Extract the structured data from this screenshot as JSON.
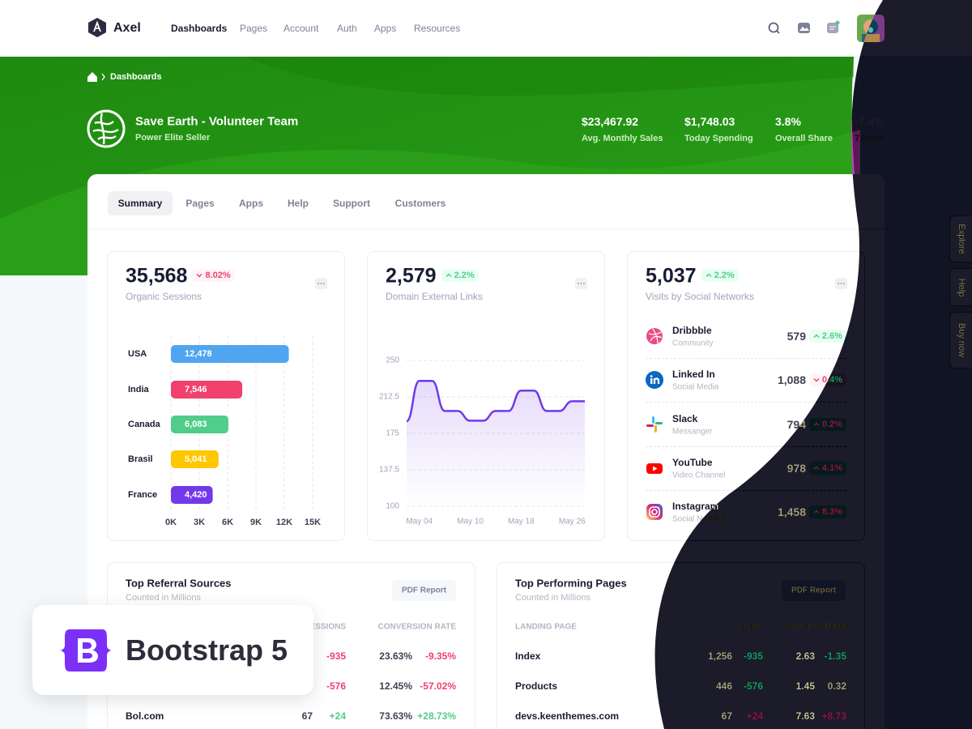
{
  "nav": {
    "brand": "Axel",
    "menu": [
      "Dashboards",
      "Pages",
      "Account",
      "Auth",
      "Apps",
      "Resources"
    ]
  },
  "breadcrumb": "Dashboards",
  "profile": {
    "name": "Save Earth - Volunteer Team",
    "subtitle": "Power Elite Seller",
    "stats": [
      {
        "value": "$23,467.92",
        "label": "Avg. Monthly Sales"
      },
      {
        "value": "$1,748.03",
        "label": "Today Spending"
      },
      {
        "value": "3.8%",
        "label": "Overall Share"
      },
      {
        "value": "-7.4%",
        "label": "7 Days"
      }
    ]
  },
  "tabs": [
    "Summary",
    "Pages",
    "Apps",
    "Help",
    "Support",
    "Customers"
  ],
  "side_buttons": [
    "Explore",
    "Help",
    "Buy now"
  ],
  "cards": [
    {
      "value": "35,568",
      "change": "8.02%",
      "trend": "down",
      "label": "Organic Sessions"
    },
    {
      "value": "2,579",
      "change": "2.2%",
      "trend": "up",
      "label": "Domain External Links"
    },
    {
      "value": "5,037",
      "change": "2.2%",
      "trend": "up",
      "label": "Visits by Social Networks"
    }
  ],
  "social": [
    {
      "name": "Dribbble",
      "sub": "Community",
      "value": "579",
      "change": "2.6%",
      "trend": "up"
    },
    {
      "name": "Linked In",
      "sub": "Social Media",
      "value": "1,088",
      "change": "0.4%",
      "trend": "down"
    },
    {
      "name": "Slack",
      "sub": "Messanger",
      "value": "794",
      "change": "0.2%",
      "trend": "up"
    },
    {
      "name": "YouTube",
      "sub": "Video Channel",
      "value": "978",
      "change": "4.1%",
      "trend": "up"
    },
    {
      "name": "Instagram",
      "sub": "Social Network",
      "value": "1,458",
      "change": "8.3%",
      "trend": "up"
    }
  ],
  "chart_data": [
    {
      "type": "bar",
      "horizontal": true,
      "categories": [
        "USA",
        "India",
        "Canada",
        "Brasil",
        "France"
      ],
      "values": [
        12478,
        7546,
        6083,
        5041,
        4420
      ],
      "value_labels": [
        "12,478",
        "7,546",
        "6,083",
        "5,041",
        "4,420"
      ],
      "colors": [
        "#50a5f1",
        "#f1416c",
        "#50cd89",
        "#ffc700",
        "#7239ea"
      ],
      "xlim": [
        0,
        15000
      ],
      "xticks": [
        {
          "value": 0,
          "label": "0K"
        },
        {
          "value": 3000,
          "label": "3K"
        },
        {
          "value": 6000,
          "label": "6K"
        },
        {
          "value": 9000,
          "label": "9K"
        },
        {
          "value": 12000,
          "label": "12K"
        },
        {
          "value": 15000,
          "label": "15K"
        }
      ],
      "grid": true
    },
    {
      "type": "line",
      "categories": [
        null,
        "May 04",
        null,
        null,
        null,
        "May 10",
        null,
        null,
        null,
        "May 18",
        null,
        null,
        null,
        "May 26",
        null
      ],
      "values": [
        187.5,
        229,
        229,
        198,
        198,
        188,
        188,
        198,
        198,
        219,
        219,
        198,
        198,
        208,
        208
      ],
      "color": "#7239ea",
      "ylim": [
        100,
        250
      ],
      "yticks": [
        100,
        137.5,
        175,
        212.5,
        250
      ],
      "grid": true
    }
  ],
  "referral": {
    "title": "Top Referral Sources",
    "subtitle": "Counted in Millions",
    "button": "PDF Report",
    "columns": {
      "sessions": "SESSIONS",
      "rate": "CONVERSION RATE"
    },
    "rows": [
      {
        "change": "-935",
        "rate": "23.63%",
        "rate_change": "-9.35%"
      },
      {
        "change": "-576",
        "rate": "12.45%",
        "rate_change": "-57.02%"
      },
      {
        "source": "Bol.com",
        "sessions": "67",
        "change": "+24",
        "rate": "73.63%",
        "rate_change": "+28.73%"
      }
    ]
  },
  "pages": {
    "title": "Top Performing Pages",
    "subtitle": "Counted in Millions",
    "button": "PDF Report",
    "columns": {
      "page": "LANDING PAGE",
      "clicks": "CLICKS",
      "position": "AVG. POSITION"
    },
    "rows": [
      {
        "page": "Index",
        "clicks": "1,256",
        "change": "-935",
        "position": "2.63",
        "position_change": "-1.35"
      },
      {
        "page": "Products",
        "clicks": "446",
        "change": "-576",
        "position": "1.45",
        "position_change": "0.32"
      },
      {
        "page": "devs.keenthemes.com",
        "clicks": "67",
        "change": "+24",
        "position": "7.63",
        "position_change": "+8.73"
      }
    ]
  },
  "badge": "Bootstrap 5"
}
